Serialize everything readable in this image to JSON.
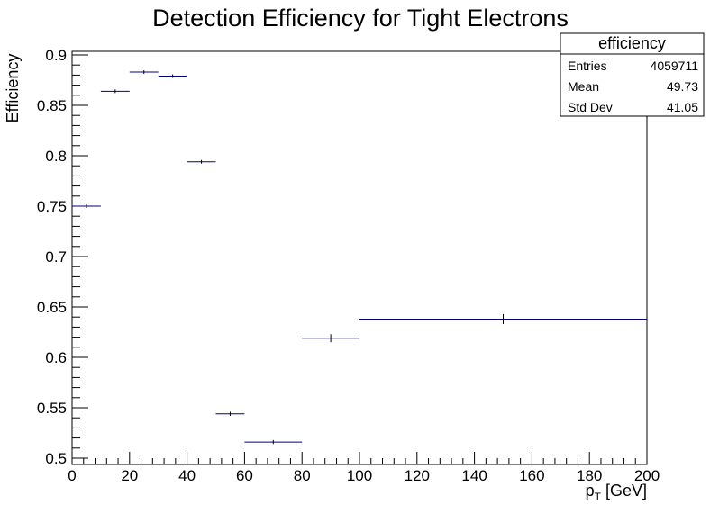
{
  "chart_data": {
    "type": "scatter",
    "title": "Detection Efficiency for Tight Electrons",
    "xlabel_main": "p",
    "xlabel_sub": "T",
    "xlabel_unit": "[GeV]",
    "ylabel": "Efficiency",
    "xlim": [
      0,
      200
    ],
    "ylim": [
      0.5,
      0.9
    ],
    "x_ticks": [
      "0",
      "20",
      "40",
      "60",
      "80",
      "100",
      "120",
      "140",
      "160",
      "180",
      "200"
    ],
    "y_ticks": [
      "0.5",
      "0.55",
      "0.6",
      "0.65",
      "0.7",
      "0.75",
      "0.8",
      "0.85",
      "0.9"
    ],
    "grid": false,
    "series": [
      {
        "color": "#000080",
        "points": [
          {
            "x": 5,
            "xlow": 0,
            "xhigh": 10,
            "y": 0.75,
            "yerr": 0.001
          },
          {
            "x": 15,
            "xlow": 10,
            "xhigh": 20,
            "y": 0.864,
            "yerr": 0.001
          },
          {
            "x": 25,
            "xlow": 20,
            "xhigh": 30,
            "y": 0.883,
            "yerr": 0.001
          },
          {
            "x": 35,
            "xlow": 30,
            "xhigh": 40,
            "y": 0.879,
            "yerr": 0.001
          },
          {
            "x": 45,
            "xlow": 40,
            "xhigh": 50,
            "y": 0.794,
            "yerr": 0.001
          },
          {
            "x": 55,
            "xlow": 50,
            "xhigh": 60,
            "y": 0.544,
            "yerr": 0.002
          },
          {
            "x": 70,
            "xlow": 60,
            "xhigh": 80,
            "y": 0.516,
            "yerr": 0.002
          },
          {
            "x": 90,
            "xlow": 80,
            "xhigh": 100,
            "y": 0.619,
            "yerr": 0.004
          },
          {
            "x": 150,
            "xlow": 100,
            "xhigh": 200,
            "y": 0.638,
            "yerr": 0.005
          }
        ]
      }
    ],
    "stats_box": {
      "title": "efficiency",
      "rows": [
        {
          "label": "Entries",
          "value": "4059711"
        },
        {
          "label": "Mean",
          "value": "49.73"
        },
        {
          "label": "Std Dev",
          "value": "41.05"
        }
      ]
    }
  }
}
